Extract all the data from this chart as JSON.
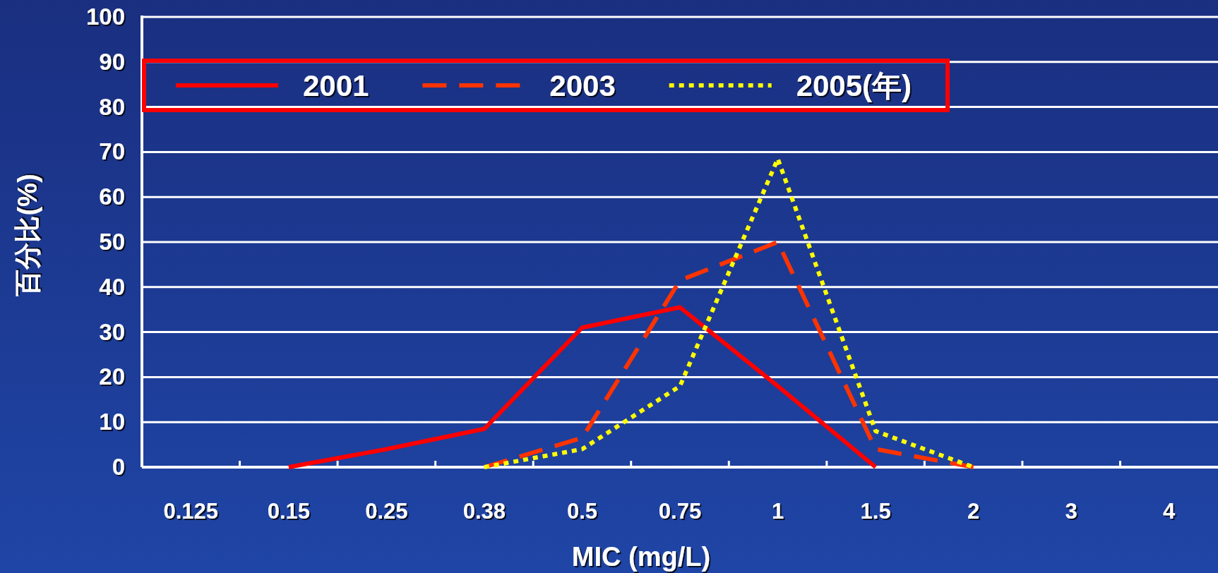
{
  "chart_data": {
    "type": "line",
    "xlabel": "MIC (mg/L)",
    "ylabel": "百分比(%)",
    "categories": [
      "0.125",
      "0.15",
      "0.25",
      "0.38",
      "0.5",
      "0.75",
      "1",
      "1.5",
      "2",
      "3",
      "4"
    ],
    "series": [
      {
        "name": "2001",
        "color": "#ff0000",
        "line_style": "solid",
        "values": [
          null,
          0,
          4,
          8.5,
          31,
          35.5,
          18,
          0,
          null,
          null,
          null
        ]
      },
      {
        "name": "2003",
        "color": "#ff3300",
        "line_style": "dashed",
        "values": [
          null,
          null,
          null,
          0,
          6.5,
          41.5,
          50,
          4,
          0,
          null,
          null
        ]
      },
      {
        "name": "2005(年)",
        "color": "#ffff00",
        "line_style": "dotted",
        "values": [
          null,
          null,
          null,
          0,
          4,
          18,
          68.5,
          8,
          0,
          null,
          null
        ]
      }
    ],
    "ylim": [
      0,
      100
    ],
    "yticks": [
      0,
      10,
      20,
      30,
      40,
      50,
      60,
      70,
      80,
      90,
      100
    ],
    "grid": "y",
    "legend": "top"
  }
}
